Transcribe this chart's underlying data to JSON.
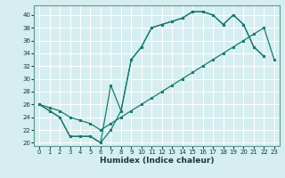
{
  "xlabel": "Humidex (Indice chaleur)",
  "xlim": [
    -0.5,
    23.5
  ],
  "ylim": [
    19.5,
    41.5
  ],
  "yticks": [
    20,
    22,
    24,
    26,
    28,
    30,
    32,
    34,
    36,
    38,
    40
  ],
  "xticks": [
    0,
    1,
    2,
    3,
    4,
    5,
    6,
    7,
    8,
    9,
    10,
    11,
    12,
    13,
    14,
    15,
    16,
    17,
    18,
    19,
    20,
    21,
    22,
    23
  ],
  "bg_color": "#d6eef0",
  "grid_color": "#ffffff",
  "line_color": "#1a7a6e",
  "line1_x": [
    0,
    1,
    2,
    3,
    4,
    5,
    6,
    7,
    8,
    9,
    10,
    11,
    12,
    13,
    14,
    15,
    16,
    17,
    18,
    19,
    20,
    21,
    22
  ],
  "line1_y": [
    26,
    25,
    24,
    21,
    21,
    21,
    20,
    29,
    25,
    33,
    35,
    38,
    38.5,
    39,
    39.5,
    40.5,
    40.5,
    40,
    38.5,
    40,
    38.5,
    35,
    33.5
  ],
  "line2_x": [
    0,
    1,
    2,
    3,
    4,
    5,
    6,
    7,
    8,
    9,
    10,
    11,
    12,
    13,
    14,
    15,
    16,
    17,
    18,
    19,
    20,
    21,
    22
  ],
  "line2_y": [
    26,
    25,
    24,
    21,
    21,
    21,
    20,
    22,
    25,
    33,
    35,
    38,
    38.5,
    39,
    39.5,
    40.5,
    40.5,
    40,
    38.5,
    40,
    38.5,
    35,
    33.5
  ],
  "line3_x": [
    0,
    1,
    2,
    3,
    4,
    5,
    6,
    7,
    8,
    9,
    10,
    11,
    12,
    13,
    14,
    15,
    16,
    17,
    18,
    19,
    20,
    21,
    22,
    23
  ],
  "line3_y": [
    26,
    25.5,
    25,
    24,
    23.5,
    23,
    22,
    23,
    24,
    25,
    26,
    27,
    28,
    29,
    30,
    31,
    32,
    33,
    34,
    35,
    36,
    37,
    38,
    33
  ]
}
